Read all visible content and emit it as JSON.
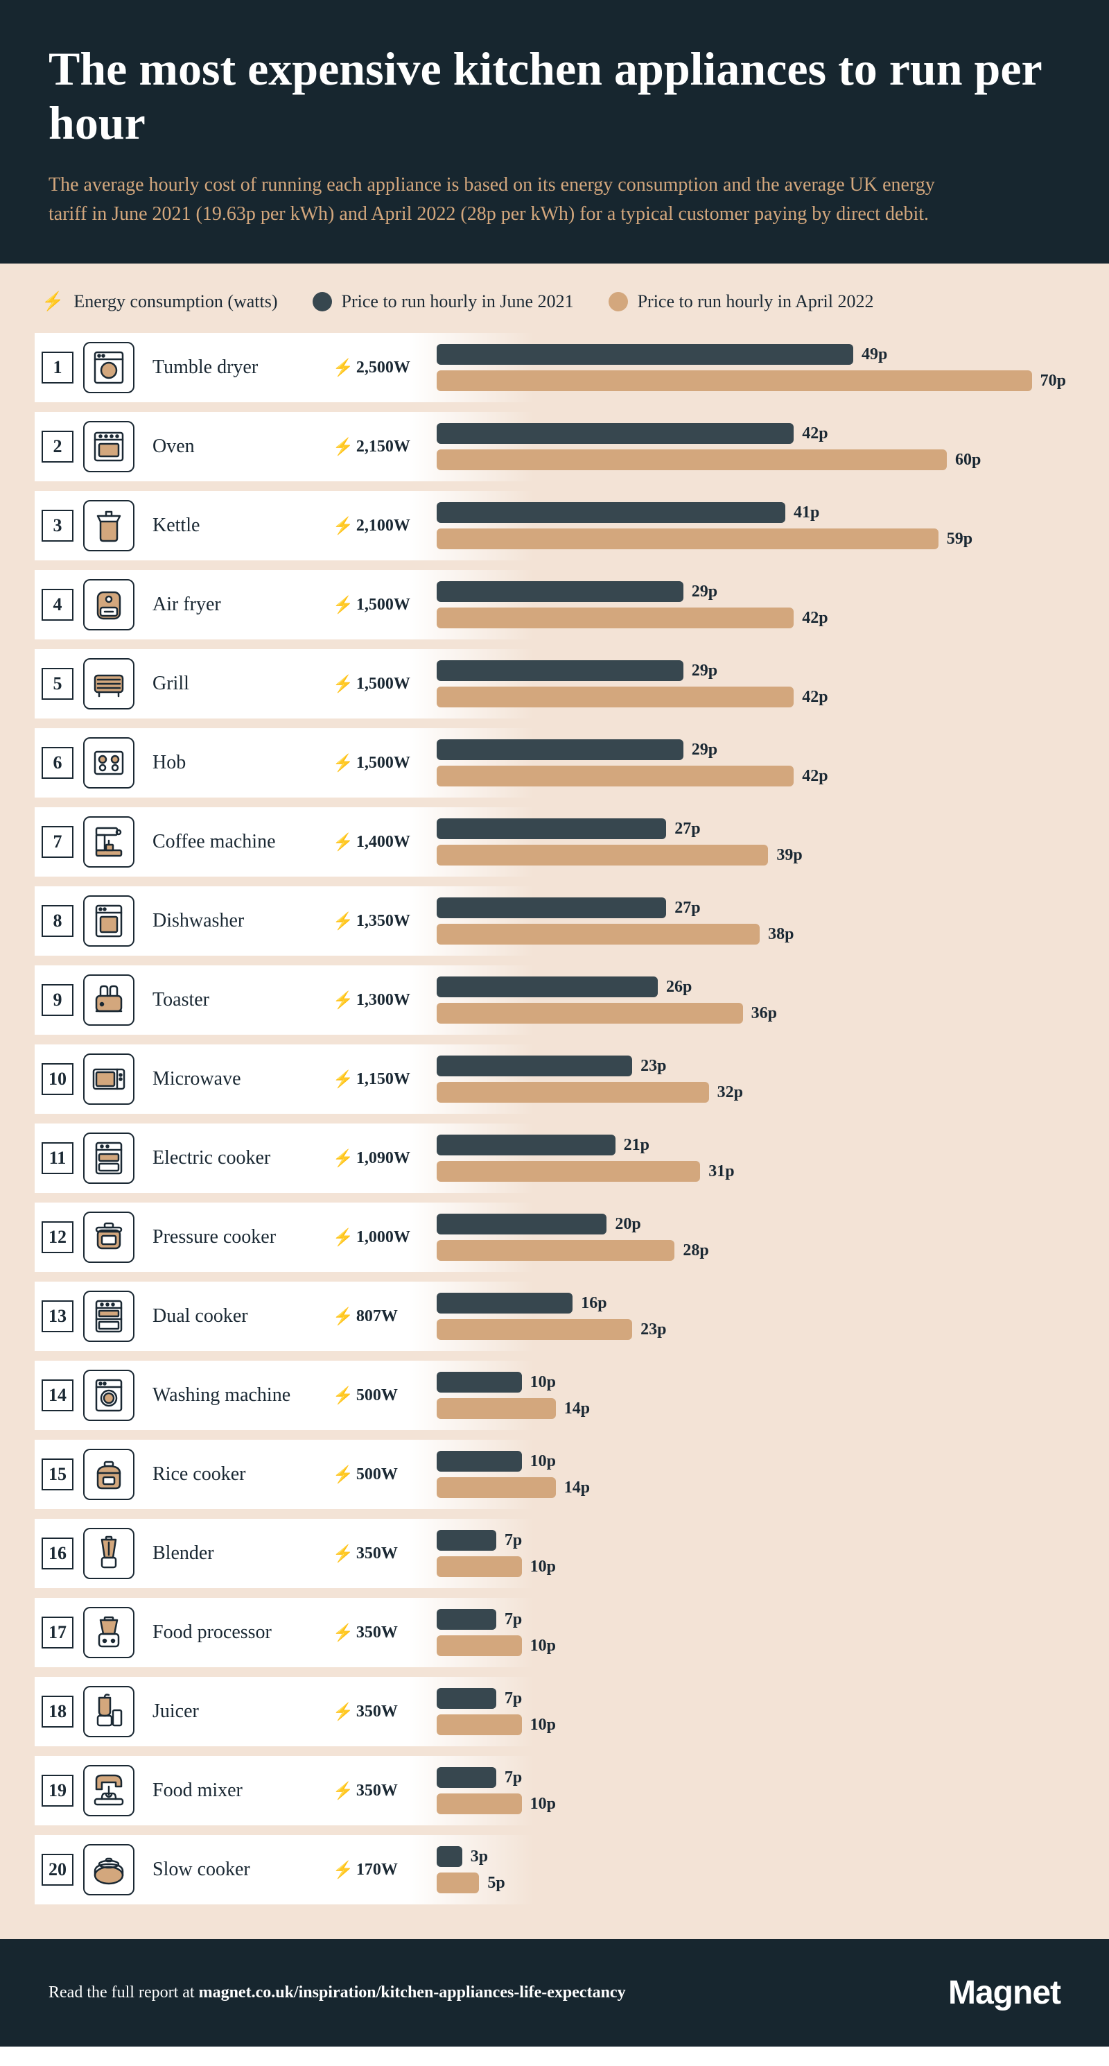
{
  "colors": {
    "header_bg": "#17262f",
    "chart_bg": "#f3e3d6",
    "subtitle": "#d3a77d",
    "bar_2021": "#37474f",
    "bar_2022": "#d3a77d",
    "text_dark": "#1a2833",
    "icon_stroke": "#1a2833",
    "icon_accent": "#d3a77d"
  },
  "typography": {
    "title_size": 68,
    "subtitle_size": 28,
    "legend_size": 26,
    "rank_size": 26,
    "name_size": 28,
    "watts_size": 24,
    "barlabel_size": 24,
    "footer_size": 24,
    "brand_size": 48
  },
  "layout": {
    "bar_max_value": 75,
    "fade_start_pct": 36,
    "fade_end_pct": 48
  },
  "title": "The most expensive kitchen appliances to run per hour",
  "subtitle": "The average hourly cost of running each appliance is based on its energy consumption and the average UK energy tariff in June 2021 (19.63p per kWh) and April 2022 (28p per kWh) for a typical customer paying by direct debit.",
  "legend": {
    "energy": "Energy consumption (watts)",
    "p2021": "Price to run hourly in June 2021",
    "p2022": "Price to run hourly in April 2022"
  },
  "appliances": [
    {
      "rank": 1,
      "name": "Tumble dryer",
      "watts": "2,500W",
      "p2021": 49,
      "p2022": 70,
      "icon": "dryer"
    },
    {
      "rank": 2,
      "name": "Oven",
      "watts": "2,150W",
      "p2021": 42,
      "p2022": 60,
      "icon": "oven"
    },
    {
      "rank": 3,
      "name": "Kettle",
      "watts": "2,100W",
      "p2021": 41,
      "p2022": 59,
      "icon": "kettle"
    },
    {
      "rank": 4,
      "name": "Air fryer",
      "watts": "1,500W",
      "p2021": 29,
      "p2022": 42,
      "icon": "airfryer"
    },
    {
      "rank": 5,
      "name": "Grill",
      "watts": "1,500W",
      "p2021": 29,
      "p2022": 42,
      "icon": "grill"
    },
    {
      "rank": 6,
      "name": "Hob",
      "watts": "1,500W",
      "p2021": 29,
      "p2022": 42,
      "icon": "hob"
    },
    {
      "rank": 7,
      "name": "Coffee machine",
      "watts": "1,400W",
      "p2021": 27,
      "p2022": 39,
      "icon": "coffee"
    },
    {
      "rank": 8,
      "name": "Dishwasher",
      "watts": "1,350W",
      "p2021": 27,
      "p2022": 38,
      "icon": "dishwasher"
    },
    {
      "rank": 9,
      "name": "Toaster",
      "watts": "1,300W",
      "p2021": 26,
      "p2022": 36,
      "icon": "toaster"
    },
    {
      "rank": 10,
      "name": "Microwave",
      "watts": "1,150W",
      "p2021": 23,
      "p2022": 32,
      "icon": "microwave"
    },
    {
      "rank": 11,
      "name": "Electric cooker",
      "watts": "1,090W",
      "p2021": 21,
      "p2022": 31,
      "icon": "ecooker"
    },
    {
      "rank": 12,
      "name": "Pressure cooker",
      "watts": "1,000W",
      "p2021": 20,
      "p2022": 28,
      "icon": "pressure"
    },
    {
      "rank": 13,
      "name": "Dual cooker",
      "watts": "807W",
      "p2021": 16,
      "p2022": 23,
      "icon": "dual"
    },
    {
      "rank": 14,
      "name": "Washing machine",
      "watts": "500W",
      "p2021": 10,
      "p2022": 14,
      "icon": "washer"
    },
    {
      "rank": 15,
      "name": "Rice cooker",
      "watts": "500W",
      "p2021": 10,
      "p2022": 14,
      "icon": "rice"
    },
    {
      "rank": 16,
      "name": "Blender",
      "watts": "350W",
      "p2021": 7,
      "p2022": 10,
      "icon": "blender"
    },
    {
      "rank": 17,
      "name": "Food processor",
      "watts": "350W",
      "p2021": 7,
      "p2022": 10,
      "icon": "processor"
    },
    {
      "rank": 18,
      "name": "Juicer",
      "watts": "350W",
      "p2021": 7,
      "p2022": 10,
      "icon": "juicer"
    },
    {
      "rank": 19,
      "name": "Food mixer",
      "watts": "350W",
      "p2021": 7,
      "p2022": 10,
      "icon": "mixer"
    },
    {
      "rank": 20,
      "name": "Slow cooker",
      "watts": "170W",
      "p2021": 3,
      "p2022": 5,
      "icon": "slow"
    }
  ],
  "footer": {
    "prefix": "Read the full report at ",
    "link": "magnet.co.uk/inspiration/kitchen-appliances-life-expectancy",
    "brand": "Magnet"
  }
}
